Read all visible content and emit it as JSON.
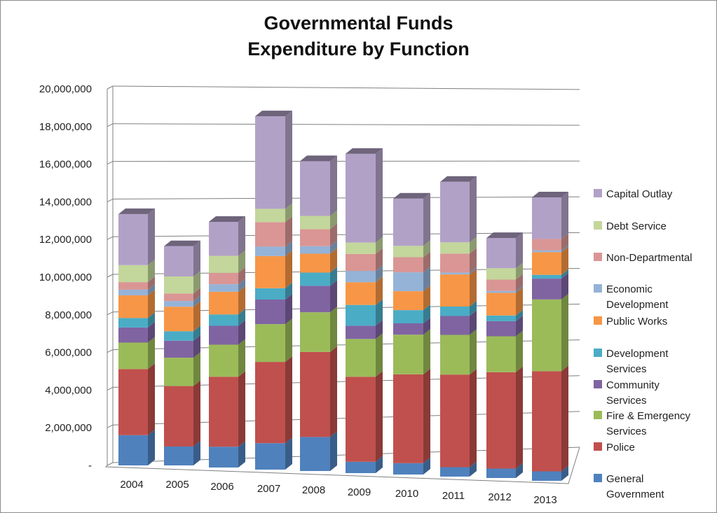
{
  "chart_data": {
    "type": "bar",
    "stacked": true,
    "three_d": true,
    "title": "Governmental Funds\nExpenditure by Function",
    "title_lines": [
      "Governmental Funds",
      "Expenditure by Function"
    ],
    "xlabel": "",
    "ylabel": "",
    "ylim": [
      0,
      20000000
    ],
    "yticks": [
      {
        "value": 0,
        "label": "-"
      },
      {
        "value": 2000000,
        "label": "2,000,000"
      },
      {
        "value": 4000000,
        "label": "4,000,000"
      },
      {
        "value": 6000000,
        "label": "6,000,000"
      },
      {
        "value": 8000000,
        "label": "8,000,000"
      },
      {
        "value": 10000000,
        "label": "10,000,000"
      },
      {
        "value": 12000000,
        "label": "12,000,000"
      },
      {
        "value": 14000000,
        "label": "14,000,000"
      },
      {
        "value": 16000000,
        "label": "16,000,000"
      },
      {
        "value": 18000000,
        "label": "18,000,000"
      },
      {
        "value": 20000000,
        "label": "20,000,000"
      }
    ],
    "grid": true,
    "legend_position": "right",
    "categories": [
      "2004",
      "2005",
      "2006",
      "2007",
      "2008",
      "2009",
      "2010",
      "2011",
      "2012",
      "2013"
    ],
    "series": [
      {
        "name": "General Government",
        "color": "#4f81bd",
        "values": [
          1600000,
          1000000,
          1100000,
          1400000,
          1800000,
          600000,
          600000,
          500000,
          500000,
          500000
        ]
      },
      {
        "name": "Police",
        "color": "#c0504d",
        "values": [
          3500000,
          3200000,
          3700000,
          4300000,
          4500000,
          4500000,
          4700000,
          4900000,
          5100000,
          5300000
        ]
      },
      {
        "name": "Fire & Emergency Services",
        "color": "#9bbb59",
        "values": [
          1400000,
          1500000,
          1700000,
          2000000,
          2100000,
          2000000,
          2100000,
          2100000,
          1900000,
          3800000
        ]
      },
      {
        "name": "Community Services",
        "color": "#8064a2",
        "values": [
          800000,
          900000,
          1000000,
          1300000,
          1400000,
          700000,
          600000,
          1000000,
          800000,
          1100000
        ]
      },
      {
        "name": "Development Services",
        "color": "#4bacc6",
        "values": [
          500000,
          500000,
          600000,
          600000,
          700000,
          1100000,
          700000,
          500000,
          300000,
          200000
        ]
      },
      {
        "name": "Public Works",
        "color": "#f79646",
        "values": [
          1200000,
          1300000,
          1200000,
          1700000,
          1000000,
          1200000,
          1000000,
          1700000,
          1200000,
          1200000
        ]
      },
      {
        "name": "Economic Development",
        "color": "#95b3d7",
        "values": [
          300000,
          300000,
          400000,
          500000,
          400000,
          600000,
          1000000,
          100000,
          100000,
          100000
        ]
      },
      {
        "name": "Non-Departmental",
        "color": "#d99694",
        "values": [
          400000,
          400000,
          600000,
          1300000,
          900000,
          900000,
          800000,
          1000000,
          600000,
          600000
        ]
      },
      {
        "name": "Debt Service",
        "color": "#c3d69b",
        "values": [
          900000,
          900000,
          900000,
          700000,
          700000,
          600000,
          600000,
          600000,
          600000,
          0
        ]
      },
      {
        "name": "Capital Outlay",
        "color": "#b2a1c7",
        "values": [
          2700000,
          1600000,
          1800000,
          4900000,
          2900000,
          4700000,
          2500000,
          3200000,
          1600000,
          2200000
        ]
      }
    ]
  }
}
